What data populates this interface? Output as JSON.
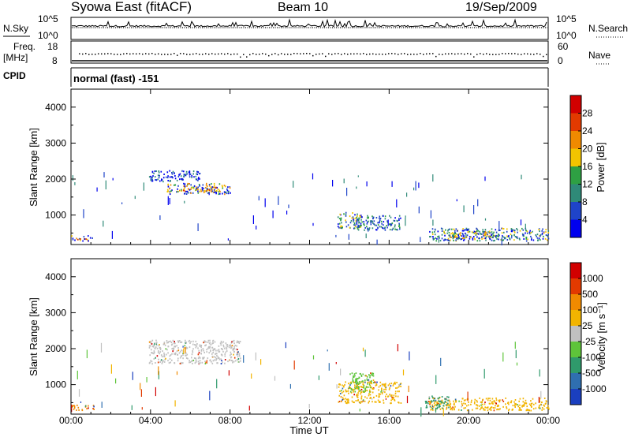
{
  "header": {
    "title": "Syowa East (fitACF)",
    "beam": "Beam 10",
    "date": "19/Sep/2009"
  },
  "nsky_panel": {
    "label": "N.Sky",
    "ytop": "10^5",
    "ybot": "10^0",
    "right_label": "N.Search",
    "right_ytop": "10^5",
    "right_ybot": "10^0"
  },
  "freq_panel": {
    "label_line1": "Freq.",
    "label_line2": "[MHz]",
    "ytop": "18",
    "ybot": "8",
    "right_label": "Nave",
    "right_ytop": "60",
    "right_ybot": "0"
  },
  "cpid_panel": {
    "label": "CPID",
    "text": "normal (fast) -151"
  },
  "chart_data": [
    {
      "type": "heatmap",
      "name": "power",
      "ylabel": "Slant Range [km]",
      "ylim": [
        180,
        4500
      ],
      "yticks": [
        "1000",
        "2000",
        "3000",
        "4000"
      ],
      "xlabel": "Time UT",
      "xlim": [
        0,
        24
      ],
      "xticks": [
        "00:00",
        "04:00",
        "08:00",
        "12:00",
        "16:00",
        "20:00",
        "00:00"
      ],
      "colorbar": {
        "label": "Power [dB]",
        "ticks": [
          "4",
          "8",
          "12",
          "16",
          "20",
          "24",
          "28"
        ],
        "colors": [
          "#0000ee",
          "#1f44c9",
          "#2f8a78",
          "#2ea043",
          "#f2c400",
          "#f08a00",
          "#e23a00",
          "#d10000"
        ]
      },
      "echo_regions": [
        {
          "t": [
            3.9,
            6.5
          ],
          "r": [
            1950,
            2250
          ],
          "level": 1
        },
        {
          "t": [
            4.8,
            8.0
          ],
          "r": [
            1600,
            1900
          ],
          "level": 4
        },
        {
          "t": [
            5.6,
            7.5
          ],
          "r": [
            1650,
            1800
          ],
          "level": 5
        },
        {
          "t": [
            0.0,
            1.1
          ],
          "r": [
            300,
            450
          ],
          "level": 5
        },
        {
          "t": [
            13.4,
            14.6
          ],
          "r": [
            650,
            1100
          ],
          "level": 3
        },
        {
          "t": [
            14.3,
            16.6
          ],
          "r": [
            600,
            1000
          ],
          "level": 2
        },
        {
          "t": [
            18.0,
            24.0
          ],
          "r": [
            300,
            650
          ],
          "level": 3
        },
        {
          "t": [
            19.0,
            21.5
          ],
          "r": [
            350,
            550
          ],
          "level": 4
        }
      ]
    },
    {
      "type": "heatmap",
      "name": "velocity",
      "ylabel": "Slant Range [km]",
      "ylim": [
        180,
        4500
      ],
      "yticks": [
        "1000",
        "2000",
        "3000",
        "4000"
      ],
      "xlabel": "Time UT",
      "xlim": [
        0,
        24
      ],
      "xticks": [
        "00:00",
        "04:00",
        "08:00",
        "12:00",
        "16:00",
        "20:00",
        "00:00"
      ],
      "colorbar": {
        "label": "Velocity [m s⁻¹]",
        "ticks": [
          "1000",
          "500",
          "100",
          "25",
          "-25",
          "-100",
          "-500",
          "-1000"
        ],
        "colors": [
          "#1a3fbf",
          "#2f6fb0",
          "#2f9a6b",
          "#5ec43a",
          "#c0c0c0",
          "#f2b400",
          "#f08a00",
          "#e23a00",
          "#d10000"
        ]
      },
      "echo_regions": [
        {
          "t": [
            3.9,
            8.5
          ],
          "r": [
            1600,
            2250
          ],
          "color": "#c0c0c0"
        },
        {
          "t": [
            0.0,
            1.2
          ],
          "r": [
            300,
            450
          ],
          "color": "#f08a00"
        },
        {
          "t": [
            13.4,
            16.6
          ],
          "r": [
            500,
            1100
          ],
          "color": "#f2b400"
        },
        {
          "t": [
            14.0,
            15.2
          ],
          "r": [
            800,
            1350
          ],
          "color": "#5ec43a"
        },
        {
          "t": [
            18.0,
            24.0
          ],
          "r": [
            300,
            650
          ],
          "color": "#f2b400"
        },
        {
          "t": [
            17.8,
            19.0
          ],
          "r": [
            350,
            700
          ],
          "color": "#2f9a6b"
        }
      ]
    }
  ],
  "time_axis": {
    "label": "Time UT",
    "ticks": [
      "00:00",
      "04:00",
      "08:00",
      "12:00",
      "16:00",
      "20:00",
      "00:00"
    ]
  }
}
